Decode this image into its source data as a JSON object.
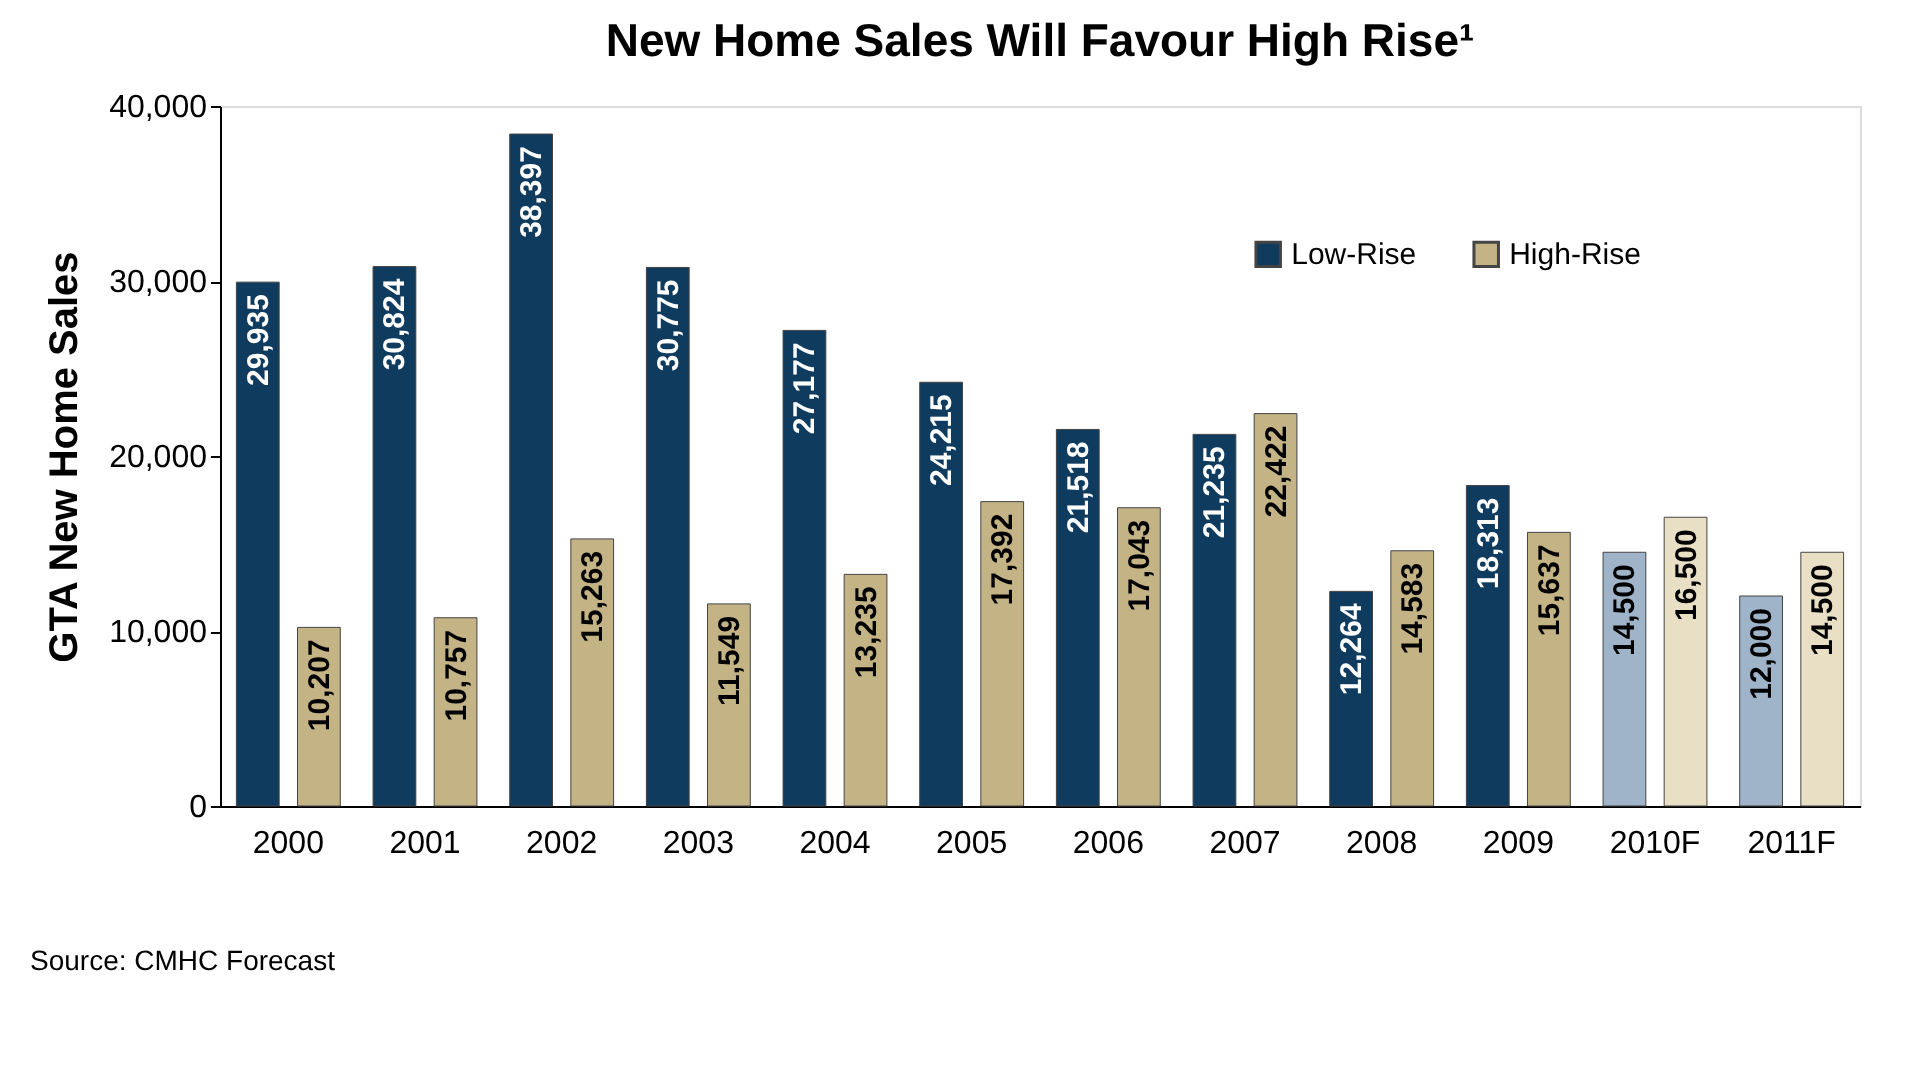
{
  "chart_data": {
    "type": "bar",
    "title": "New Home Sales Will Favour High Rise¹",
    "ylabel": "GTA New Home Sales",
    "categories": [
      "2000",
      "2001",
      "2002",
      "2003",
      "2004",
      "2005",
      "2006",
      "2007",
      "2008",
      "2009",
      "2010F",
      "2011F"
    ],
    "series": [
      {
        "name": "Low-Rise",
        "color": "#0f3b5f",
        "colors": [
          "#0f3b5f",
          "#0f3b5f",
          "#0f3b5f",
          "#0f3b5f",
          "#0f3b5f",
          "#0f3b5f",
          "#0f3b5f",
          "#0f3b5f",
          "#0f3b5f",
          "#0f3b5f",
          "#9fb4c8",
          "#9fb4c8"
        ],
        "values": [
          29935,
          30824,
          38397,
          30775,
          27177,
          24215,
          21518,
          21235,
          12264,
          18313,
          14500,
          12000
        ],
        "value_labels": [
          "29,935",
          "30,824",
          "38,397",
          "30,775",
          "27,177",
          "24,215",
          "21,518",
          "21,235",
          "12,264",
          "18,313",
          "14,500",
          "12,000"
        ]
      },
      {
        "name": "High-Rise",
        "color": "#c4b385",
        "colors": [
          "#c4b385",
          "#c4b385",
          "#c4b385",
          "#c4b385",
          "#c4b385",
          "#c4b385",
          "#c4b385",
          "#c4b385",
          "#c4b385",
          "#c4b385",
          "#e8dfc4",
          "#e8dfc4"
        ],
        "values": [
          10207,
          10757,
          15263,
          11549,
          13235,
          17392,
          17043,
          22422,
          14583,
          15637,
          16500,
          14500
        ],
        "value_labels": [
          "10,207",
          "10,757",
          "15,263",
          "11,549",
          "13,235",
          "17,392",
          "17,043",
          "22,422",
          "14,583",
          "15,637",
          "16,500",
          "14,500"
        ]
      }
    ],
    "ylim": [
      0,
      40000
    ],
    "yticks": [
      0,
      {
        "value": 10000,
        "label": "10,000"
      },
      {
        "value": 20000,
        "label": "20,000"
      },
      {
        "value": 30000,
        "label": "30,000"
      },
      {
        "value": 40000,
        "label": "40,000"
      }
    ],
    "grid": false,
    "legend": "top right",
    "annotations": [
      "Source: CMHC Forecast"
    ]
  }
}
